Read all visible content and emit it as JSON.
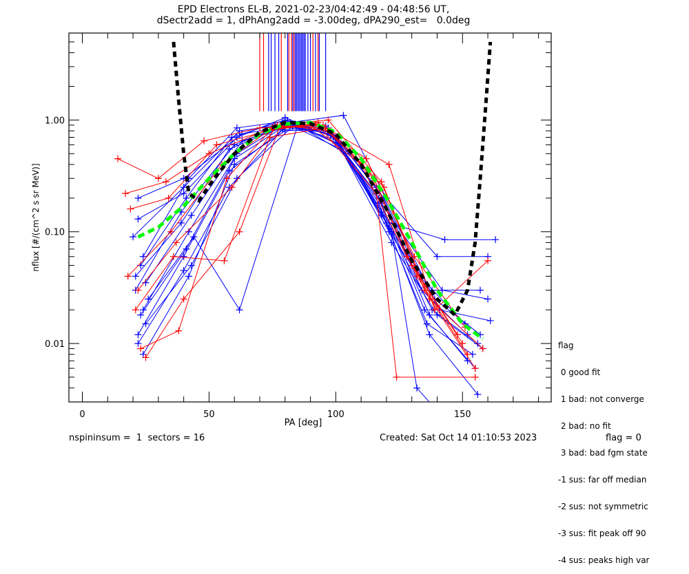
{
  "chart_data": {
    "type": "line",
    "title": "EPD Electrons EL-B, 2021-02-23/04:42:49 - 04:48:56 UT,",
    "subtitle": "dSectr2add = 1, dPhAng2add = -3.00deg, dPA290_est=   0.0deg",
    "xlabel": "PA [deg]",
    "ylabel": "nflux [#/(cm^2 s sr MeV)]",
    "xlim": [
      -5.3,
      185
    ],
    "ylim": [
      0.003,
      6.0
    ],
    "yscale": "log",
    "xticks": [
      0,
      50,
      100,
      150
    ],
    "xtick_labels": [
      "0",
      "50",
      "100",
      "150"
    ],
    "yticks": [
      0.01,
      0.1,
      1.0
    ],
    "ytick_labels": [
      "0.01",
      "0.10",
      "1.00"
    ],
    "series_colors": {
      "blue": "#0000ff",
      "red": "#ff0000",
      "green": "#00ff00",
      "black": "#000000"
    },
    "series": [
      {
        "name": "spin-blue-1",
        "color": "blue",
        "points": [
          [
            22,
            0.012
          ],
          [
            40,
            0.06
          ],
          [
            58,
            0.35
          ],
          [
            80,
            0.85
          ],
          [
            97,
            0.8
          ],
          [
            117,
            0.2
          ],
          [
            137,
            0.018
          ],
          [
            152,
            0.007
          ]
        ]
      },
      {
        "name": "spin-blue-2",
        "color": "blue",
        "points": [
          [
            24,
            0.02
          ],
          [
            42,
            0.1
          ],
          [
            61,
            0.5
          ],
          [
            79,
            0.9
          ],
          [
            98,
            0.75
          ],
          [
            116,
            0.22
          ],
          [
            135,
            0.02
          ],
          [
            155,
            0.006
          ]
        ]
      },
      {
        "name": "spin-blue-3",
        "color": "blue",
        "points": [
          [
            21,
            0.03
          ],
          [
            39,
            0.15
          ],
          [
            60,
            0.6
          ],
          [
            82,
            0.95
          ],
          [
            100,
            0.7
          ],
          [
            118,
            0.15
          ],
          [
            136,
            0.015
          ],
          [
            154,
            0.008
          ]
        ]
      },
      {
        "name": "spin-blue-4",
        "color": "blue",
        "points": [
          [
            23,
            0.05
          ],
          [
            41,
            0.2
          ],
          [
            59,
            0.7
          ],
          [
            80,
            1.0
          ],
          [
            99,
            0.72
          ],
          [
            120,
            0.12
          ],
          [
            138,
            0.02
          ],
          [
            156,
            0.01
          ]
        ]
      },
      {
        "name": "spin-blue-5",
        "color": "blue",
        "points": [
          [
            20,
            0.09
          ],
          [
            40,
            0.25
          ],
          [
            62,
            0.8
          ],
          [
            81,
            0.92
          ],
          [
            101,
            0.65
          ],
          [
            121,
            0.1
          ],
          [
            139,
            0.025
          ],
          [
            157,
            0.012
          ]
        ]
      },
      {
        "name": "spin-blue-6",
        "color": "blue",
        "points": [
          [
            25,
            0.015
          ],
          [
            43,
            0.05
          ],
          [
            61,
            0.3
          ],
          [
            83,
            0.88
          ],
          [
            102,
            0.55
          ],
          [
            122,
            0.08
          ],
          [
            140,
            0.018
          ],
          [
            158,
            0.009
          ]
        ]
      },
      {
        "name": "spin-blue-7",
        "color": "blue",
        "points": [
          [
            22,
            0.2
          ],
          [
            40,
            0.3
          ],
          [
            63,
            0.75
          ],
          [
            84,
            0.9
          ],
          [
            100,
            0.62
          ],
          [
            118,
            0.18
          ],
          [
            142,
            0.03
          ],
          [
            160,
            0.025
          ]
        ]
      },
      {
        "name": "spin-blue-8",
        "color": "blue",
        "points": [
          [
            24,
            0.008
          ],
          [
            42,
            0.04
          ],
          [
            60,
            0.4
          ],
          [
            80,
            0.8
          ],
          [
            97,
            0.85
          ],
          [
            116,
            0.25
          ],
          [
            134,
            0.03
          ],
          [
            152,
            0.012
          ]
        ]
      },
      {
        "name": "spin-blue-9",
        "color": "blue",
        "points": [
          [
            26,
            0.025
          ],
          [
            44,
            0.09
          ],
          [
            62,
            0.02
          ],
          [
            85,
            0.9
          ],
          [
            104,
            0.5
          ],
          [
            121,
            0.12
          ],
          [
            143,
            0.085
          ],
          [
            163,
            0.085
          ]
        ]
      },
      {
        "name": "spin-blue-10",
        "color": "blue",
        "points": [
          [
            21,
            0.04
          ],
          [
            39,
            0.12
          ],
          [
            58,
            0.55
          ],
          [
            78,
            0.85
          ],
          [
            96,
            0.88
          ],
          [
            115,
            0.3
          ],
          [
            133,
            0.04
          ],
          [
            151,
            0.015
          ]
        ]
      },
      {
        "name": "spin-blue-11",
        "color": "blue",
        "points": [
          [
            23,
            0.018
          ],
          [
            41,
            0.07
          ],
          [
            60,
            0.45
          ],
          [
            82,
            0.95
          ],
          [
            103,
            1.1
          ],
          [
            120,
            0.2
          ],
          [
            140,
            0.06
          ],
          [
            160,
            0.06
          ]
        ]
      },
      {
        "name": "spin-blue-12",
        "color": "blue",
        "points": [
          [
            22,
            0.01
          ],
          [
            40,
            0.045
          ],
          [
            58,
            0.25
          ],
          [
            79,
            0.82
          ],
          [
            98,
            0.78
          ],
          [
            117,
            0.18
          ],
          [
            137,
            0.012
          ],
          [
            156,
            0.0035
          ]
        ]
      },
      {
        "name": "spin-blue-13",
        "color": "blue",
        "points": [
          [
            24,
            0.06
          ],
          [
            42,
            0.3
          ],
          [
            61,
            0.85
          ],
          [
            81,
            0.98
          ],
          [
            100,
            0.7
          ],
          [
            119,
            0.2
          ],
          [
            141,
            0.02
          ],
          [
            161,
            0.016
          ]
        ]
      },
      {
        "name": "spin-blue-14",
        "color": "blue",
        "points": [
          [
            25,
            0.035
          ],
          [
            43,
            0.14
          ],
          [
            63,
            0.65
          ],
          [
            84,
            0.92
          ],
          [
            102,
            0.6
          ],
          [
            122,
            0.1
          ],
          [
            132,
            0.004
          ],
          [
            140,
            0.0025
          ]
        ]
      },
      {
        "name": "spin-blue-15",
        "color": "blue",
        "points": [
          [
            22,
            0.13
          ],
          [
            40,
            0.22
          ],
          [
            61,
            0.7
          ],
          [
            80,
            1.05
          ],
          [
            99,
            0.7
          ],
          [
            118,
            0.14
          ],
          [
            138,
            0.03
          ],
          [
            157,
            0.03
          ]
        ]
      },
      {
        "name": "spin-red-1",
        "color": "red",
        "points": [
          [
            14,
            0.45
          ],
          [
            30,
            0.3
          ],
          [
            48,
            0.65
          ],
          [
            70,
            0.85
          ],
          [
            90,
            0.9
          ],
          [
            110,
            0.4
          ],
          [
            128,
            0.06
          ],
          [
            148,
            0.012
          ]
        ]
      },
      {
        "name": "spin-red-2",
        "color": "red",
        "points": [
          [
            17,
            0.22
          ],
          [
            33,
            0.28
          ],
          [
            50,
            0.5
          ],
          [
            72,
            0.8
          ],
          [
            93,
            0.95
          ],
          [
            113,
            0.35
          ],
          [
            130,
            0.05
          ],
          [
            150,
            0.01
          ]
        ]
      },
      {
        "name": "spin-red-3",
        "color": "red",
        "points": [
          [
            18,
            0.04
          ],
          [
            35,
            0.1
          ],
          [
            55,
            0.4
          ],
          [
            75,
            0.85
          ],
          [
            95,
            0.9
          ],
          [
            115,
            0.3
          ],
          [
            132,
            0.04
          ],
          [
            152,
            0.008
          ]
        ]
      },
      {
        "name": "spin-red-4",
        "color": "red",
        "points": [
          [
            23,
            0.009
          ],
          [
            38,
            0.013
          ],
          [
            57,
            0.3
          ],
          [
            76,
            0.9
          ],
          [
            97,
            1.0
          ],
          [
            118,
            0.28
          ],
          [
            135,
            0.03
          ],
          [
            155,
            0.006
          ]
        ]
      },
      {
        "name": "spin-red-5",
        "color": "red",
        "points": [
          [
            21,
            0.02
          ],
          [
            36,
            0.06
          ],
          [
            56,
            0.055
          ],
          [
            74,
            0.7
          ],
          [
            96,
            0.85
          ],
          [
            121,
            0.4
          ],
          [
            139,
            0.02
          ],
          [
            160,
            0.055
          ]
        ]
      },
      {
        "name": "spin-red-6",
        "color": "red",
        "points": [
          [
            25,
            0.0075
          ],
          [
            40,
            0.025
          ],
          [
            62,
            0.1
          ],
          [
            78,
            0.88
          ],
          [
            94,
            0.85
          ],
          [
            116,
            0.22
          ],
          [
            124,
            0.005
          ],
          [
            155,
            0.005
          ]
        ]
      },
      {
        "name": "spin-red-7",
        "color": "red",
        "points": [
          [
            19,
            0.16
          ],
          [
            34,
            0.2
          ],
          [
            53,
            0.6
          ],
          [
            73,
            0.8
          ],
          [
            92,
            0.92
          ],
          [
            112,
            0.45
          ],
          [
            131,
            0.06
          ],
          [
            151,
            0.014
          ]
        ]
      },
      {
        "name": "spin-red-8",
        "color": "red",
        "points": [
          [
            22,
            0.03
          ],
          [
            37,
            0.08
          ],
          [
            59,
            0.25
          ],
          [
            77,
            0.9
          ],
          [
            98,
            0.8
          ],
          [
            119,
            0.25
          ],
          [
            137,
            0.025
          ],
          [
            158,
            0.009
          ]
        ]
      }
    ],
    "fit_green": [
      [
        22,
        0.09
      ],
      [
        30,
        0.11
      ],
      [
        40,
        0.17
      ],
      [
        50,
        0.3
      ],
      [
        60,
        0.5
      ],
      [
        70,
        0.75
      ],
      [
        80,
        0.92
      ],
      [
        90,
        0.95
      ],
      [
        100,
        0.78
      ],
      [
        110,
        0.45
      ],
      [
        120,
        0.2
      ],
      [
        130,
        0.08
      ],
      [
        140,
        0.03
      ],
      [
        150,
        0.015
      ],
      [
        158,
        0.011
      ]
    ],
    "fit_black": [
      [
        36,
        5.0
      ],
      [
        38,
        1.5
      ],
      [
        40,
        0.5
      ],
      [
        42,
        0.22
      ],
      [
        46,
        0.19
      ],
      [
        52,
        0.3
      ],
      [
        60,
        0.5
      ],
      [
        70,
        0.78
      ],
      [
        80,
        0.95
      ],
      [
        90,
        0.93
      ],
      [
        100,
        0.75
      ],
      [
        110,
        0.4
      ],
      [
        120,
        0.16
      ],
      [
        130,
        0.055
      ],
      [
        140,
        0.025
      ],
      [
        147,
        0.018
      ],
      [
        152,
        0.03
      ],
      [
        155,
        0.08
      ],
      [
        157,
        0.3
      ],
      [
        159,
        1.2
      ],
      [
        161,
        5.0
      ]
    ],
    "top_markers": [
      {
        "pa": 70,
        "color": "red"
      },
      {
        "pa": 71.5,
        "color": "red"
      },
      {
        "pa": 73.5,
        "color": "blue"
      },
      {
        "pa": 74.5,
        "color": "blue"
      },
      {
        "pa": 76,
        "color": "blue"
      },
      {
        "pa": 77.5,
        "color": "blue"
      },
      {
        "pa": 78.5,
        "color": "red"
      },
      {
        "pa": 81,
        "color": "blue"
      },
      {
        "pa": 81.5,
        "color": "red"
      },
      {
        "pa": 82.5,
        "color": "red"
      },
      {
        "pa": 83,
        "color": "blue"
      },
      {
        "pa": 83.5,
        "color": "red"
      },
      {
        "pa": 84,
        "color": "blue"
      },
      {
        "pa": 84.5,
        "color": "blue"
      },
      {
        "pa": 85,
        "color": "blue"
      },
      {
        "pa": 85.5,
        "color": "blue"
      },
      {
        "pa": 86,
        "color": "blue"
      },
      {
        "pa": 86.5,
        "color": "blue"
      },
      {
        "pa": 87,
        "color": "blue"
      },
      {
        "pa": 87.5,
        "color": "blue"
      },
      {
        "pa": 88,
        "color": "blue"
      },
      {
        "pa": 89,
        "color": "blue"
      },
      {
        "pa": 90,
        "color": "blue"
      },
      {
        "pa": 91,
        "color": "red"
      },
      {
        "pa": 92,
        "color": "blue"
      },
      {
        "pa": 93,
        "color": "red"
      },
      {
        "pa": 93.5,
        "color": "blue"
      },
      {
        "pa": 96,
        "color": "blue"
      }
    ],
    "top_markers_range": [
      1.2,
      6.0
    ],
    "legend": {
      "title": "flag",
      "entries": [
        " 0 good fit",
        " 1 bad: not converge",
        " 2 bad: no fit",
        " 3 bad: bad fgm state",
        "-1 sus: far off median",
        "-2 sus: not symmetric",
        "-3 sus: fit peak off 90",
        "-4 sus: peaks high var"
      ],
      "placement": "right"
    }
  },
  "footer": {
    "left": "nspininsum =  1  sectors = 16",
    "created": "Created: Sat Oct 14 01:10:53 2023",
    "flag": "flag = 0"
  }
}
